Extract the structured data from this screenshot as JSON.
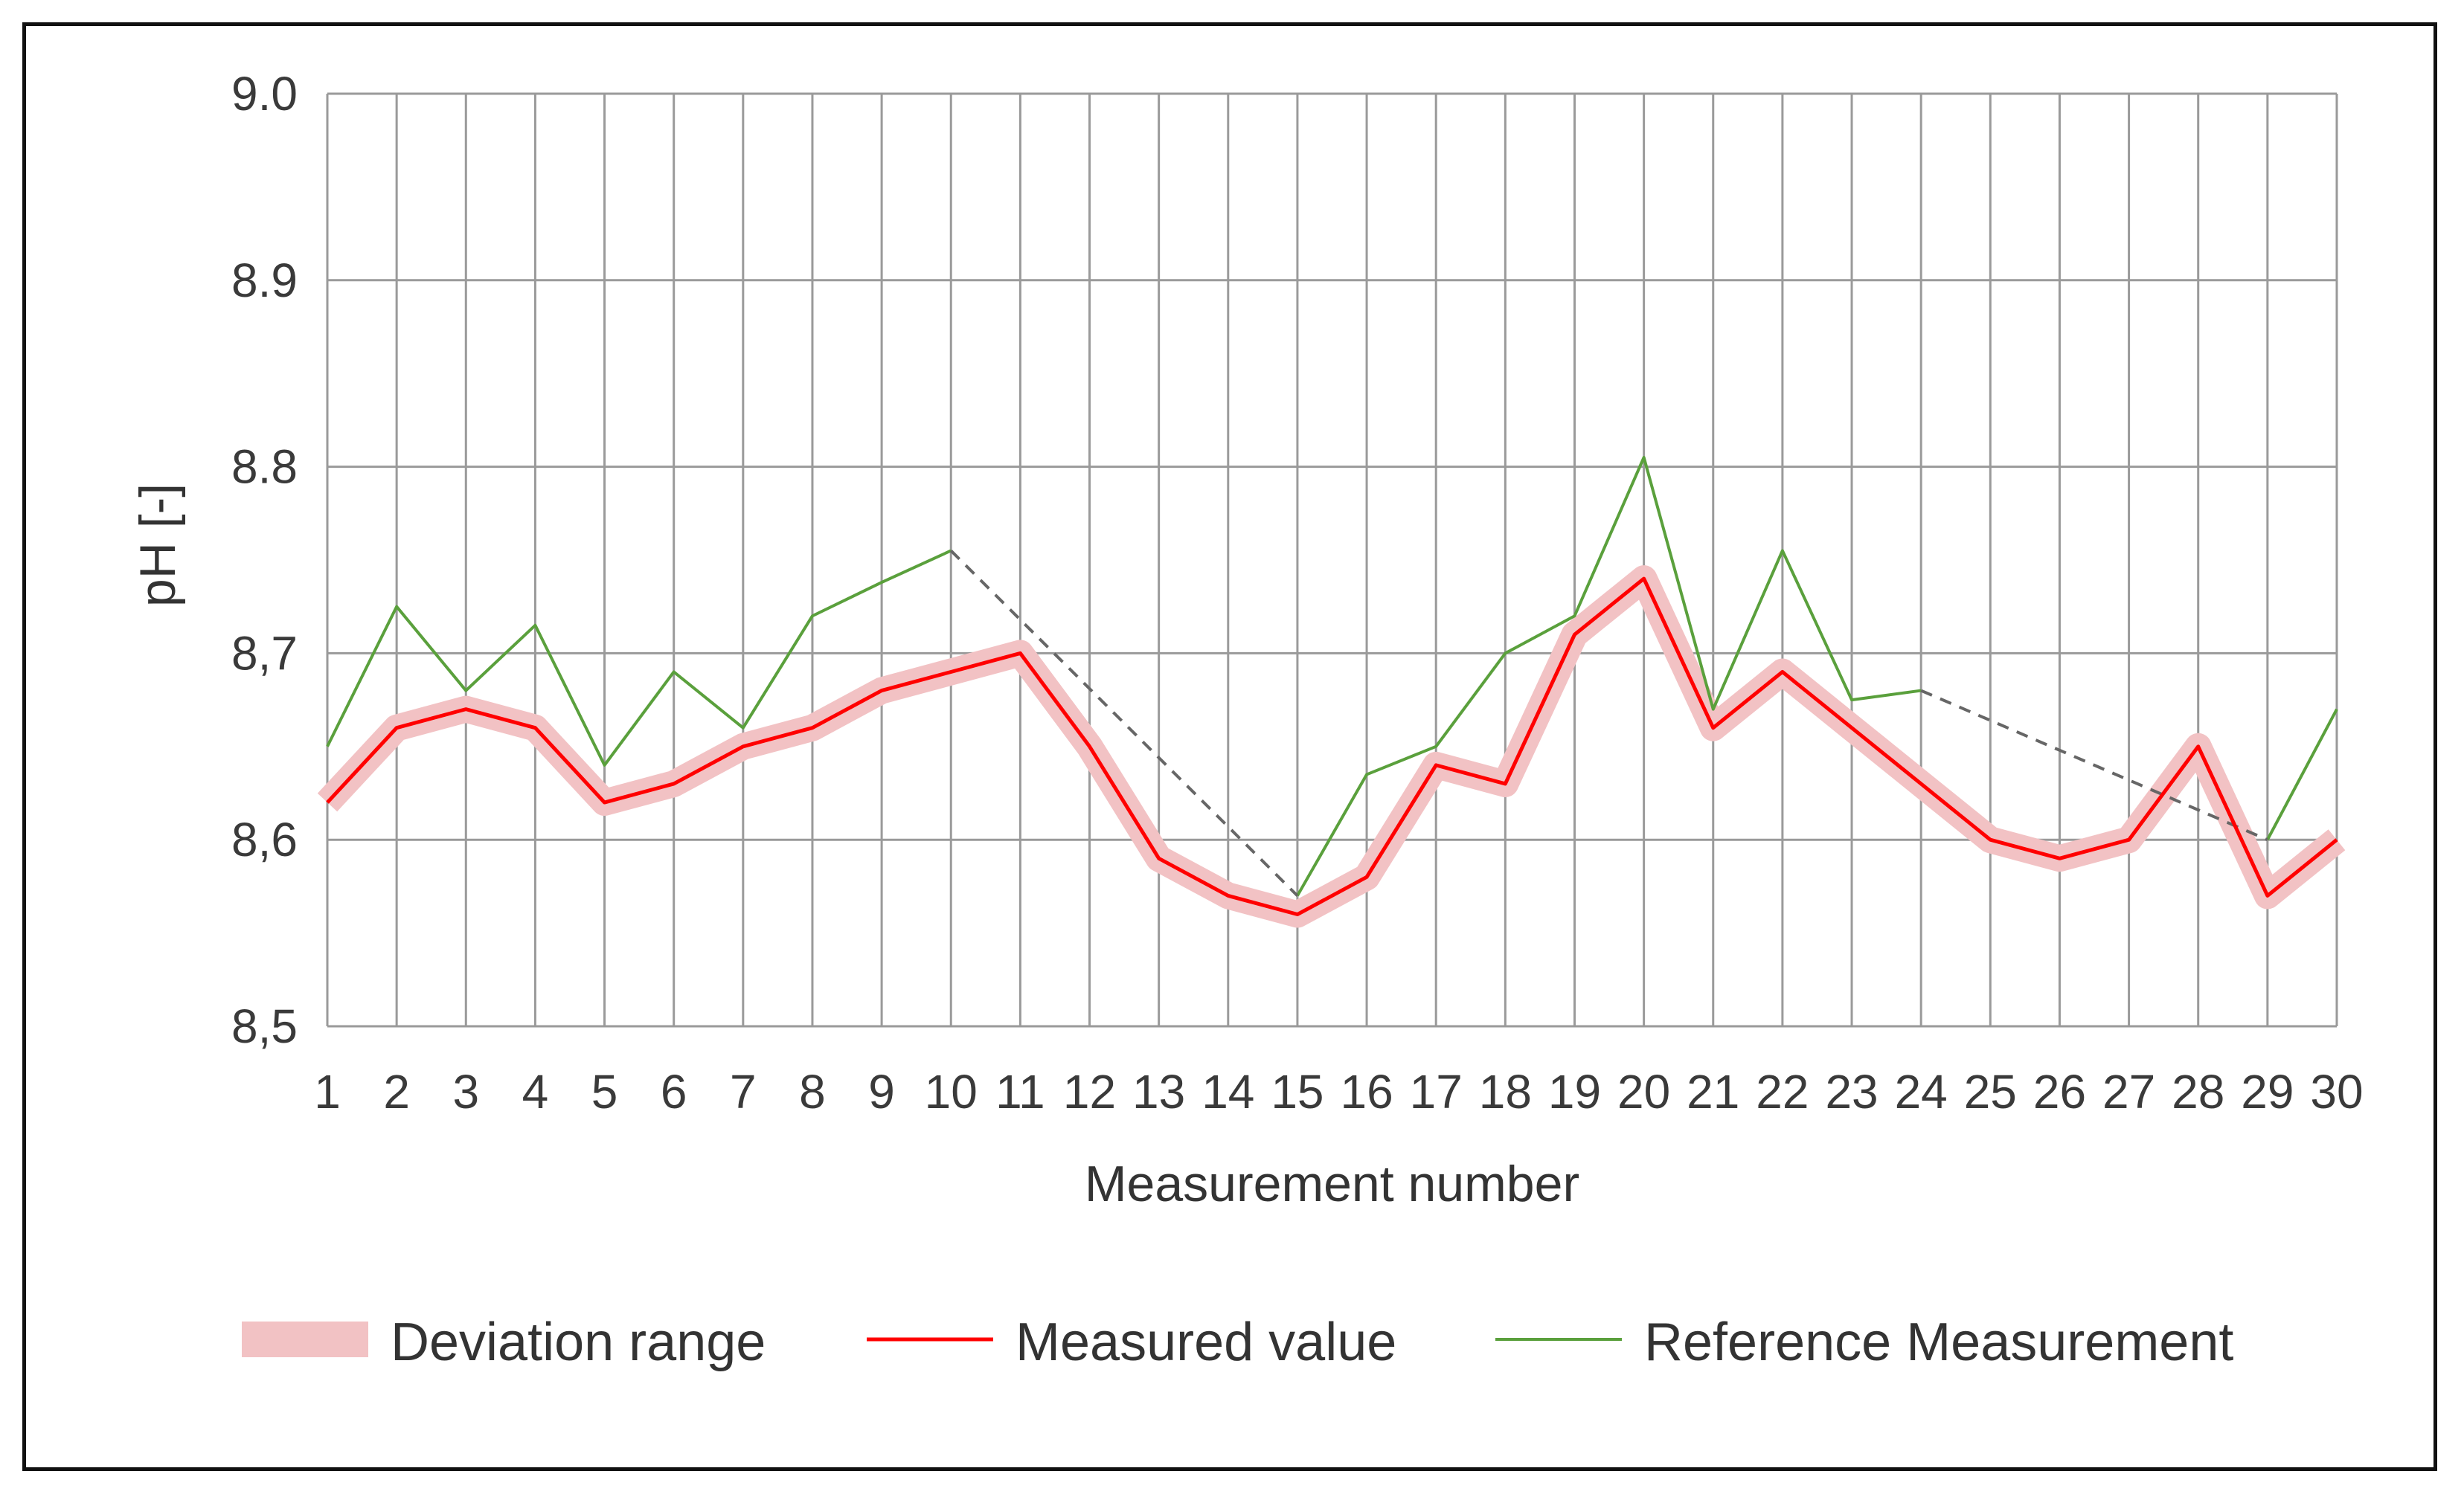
{
  "chart_data": {
    "type": "line",
    "xlabel": "Measurement number",
    "ylabel": "pH [-]",
    "ylim": [
      8.5,
      9.0
    ],
    "yticks": [
      "8,5",
      "8,6",
      "8,7",
      "8.8",
      "8.9",
      "9.0"
    ],
    "x": [
      1,
      2,
      3,
      4,
      5,
      6,
      7,
      8,
      9,
      10,
      11,
      12,
      13,
      14,
      15,
      16,
      17,
      18,
      19,
      20,
      21,
      22,
      23,
      24,
      25,
      26,
      27,
      28,
      29,
      30
    ],
    "grid": true,
    "legend_position": "bottom",
    "series": [
      {
        "name": "Deviation range",
        "kind": "band",
        "color": "#f2c2c4",
        "values": [
          8.62,
          8.66,
          8.67,
          8.66,
          8.62,
          8.63,
          8.65,
          8.66,
          8.68,
          8.69,
          8.7,
          8.65,
          8.59,
          8.57,
          8.56,
          8.58,
          8.64,
          8.63,
          8.71,
          8.74,
          8.66,
          8.69,
          8.66,
          8.63,
          8.6,
          8.59,
          8.6,
          8.65,
          8.57,
          8.6
        ]
      },
      {
        "name": "Measured value",
        "kind": "line",
        "color": "#ff0000",
        "values": [
          8.62,
          8.66,
          8.67,
          8.66,
          8.62,
          8.63,
          8.65,
          8.66,
          8.68,
          8.69,
          8.7,
          8.65,
          8.59,
          8.57,
          8.56,
          8.58,
          8.64,
          8.63,
          8.71,
          8.74,
          8.66,
          8.69,
          8.66,
          8.63,
          8.6,
          8.59,
          8.6,
          8.65,
          8.57,
          8.6
        ]
      },
      {
        "name": "Reference Measurement",
        "kind": "line",
        "color": "#5aa03c",
        "values": [
          8.65,
          8.725,
          8.68,
          8.715,
          8.64,
          8.69,
          8.66,
          8.72,
          8.738,
          8.755,
          null,
          null,
          null,
          null,
          8.57,
          8.635,
          8.65,
          8.7,
          8.72,
          8.805,
          8.67,
          8.755,
          8.675,
          8.68,
          null,
          null,
          null,
          null,
          8.6,
          8.67
        ],
        "gaps": [
          {
            "from_x": 10,
            "to_x": 15,
            "style": "dashed",
            "color": "#666666"
          },
          {
            "from_x": 24,
            "to_x": 29,
            "style": "dashed",
            "color": "#666666"
          }
        ]
      }
    ]
  },
  "colors": {
    "grid": "#9a9a9a",
    "frame": "#111111"
  }
}
